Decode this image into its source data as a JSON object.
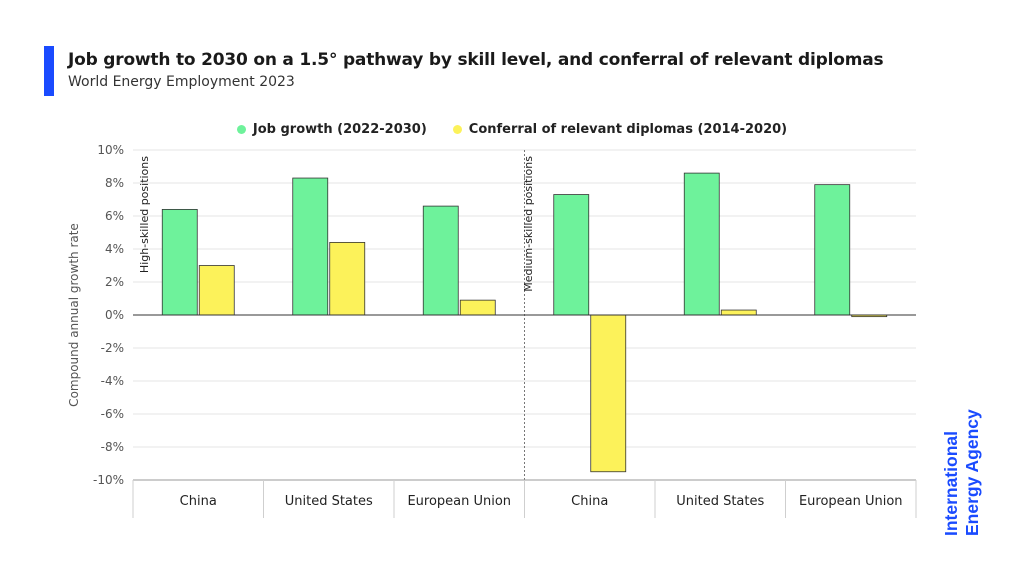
{
  "header": {
    "title": "Job growth to 2030 on a 1.5° pathway by skill level, and conferral of relevant diplomas",
    "subtitle": "World Energy Employment 2023"
  },
  "colors": {
    "accent": "#1a4bff",
    "job_growth": "#6ef29b",
    "diplomas": "#fcf25a",
    "logo": "#1a4bff"
  },
  "logo": {
    "line1": "International",
    "line2": "Energy Agency"
  },
  "chart_data": {
    "type": "bar",
    "title": "Job growth to 2030 on a 1.5° pathway by skill level, and conferral of relevant diplomas",
    "ylabel": "Compound annual growth rate",
    "ylim": [
      -10,
      10
    ],
    "yticks": [
      10,
      8,
      6,
      4,
      2,
      0,
      -2,
      -4,
      -6,
      -8,
      -10
    ],
    "ytick_labels": [
      "10%",
      "8%",
      "6%",
      "4%",
      "2%",
      "0%",
      "-2%",
      "-4%",
      "-6%",
      "-8%",
      "-10%"
    ],
    "legend_position": "top-center",
    "grid": true,
    "groups": [
      {
        "label": "High-skilled positions",
        "categories": [
          "China",
          "United States",
          "European Union"
        ]
      },
      {
        "label": "Medium-skilled positions",
        "categories": [
          "China",
          "United States",
          "European Union"
        ]
      }
    ],
    "categories": [
      "China",
      "United States",
      "European Union",
      "China",
      "United States",
      "European Union"
    ],
    "series": [
      {
        "name": "Job growth (2022-2030)",
        "values": [
          6.4,
          8.3,
          6.6,
          7.3,
          8.6,
          7.9
        ]
      },
      {
        "name": "Conferral of relevant diplomas (2014-2020)",
        "values": [
          3.0,
          4.4,
          0.9,
          -9.5,
          0.3,
          -0.1
        ]
      }
    ]
  }
}
